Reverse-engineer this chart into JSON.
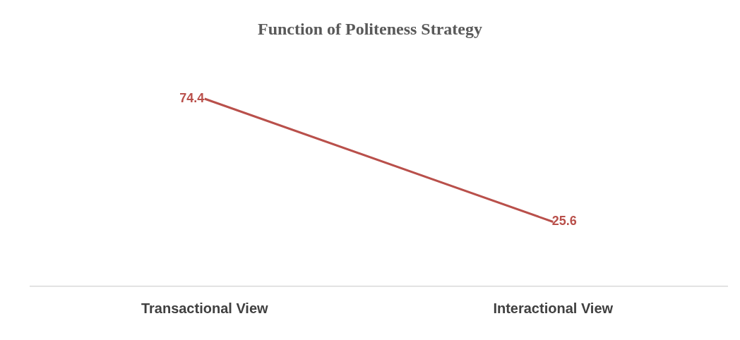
{
  "chart_data": {
    "type": "line",
    "title": "Function of Politeness Strategy",
    "categories": [
      "Transactional View",
      "Interactional View"
    ],
    "series": [
      {
        "color": "#b9504b",
        "values": [
          74.4,
          25.6
        ]
      }
    ],
    "tick_labels": "x",
    "grid": false,
    "legend": false,
    "marker": "none",
    "line_style": "solid",
    "data_labels": true
  }
}
